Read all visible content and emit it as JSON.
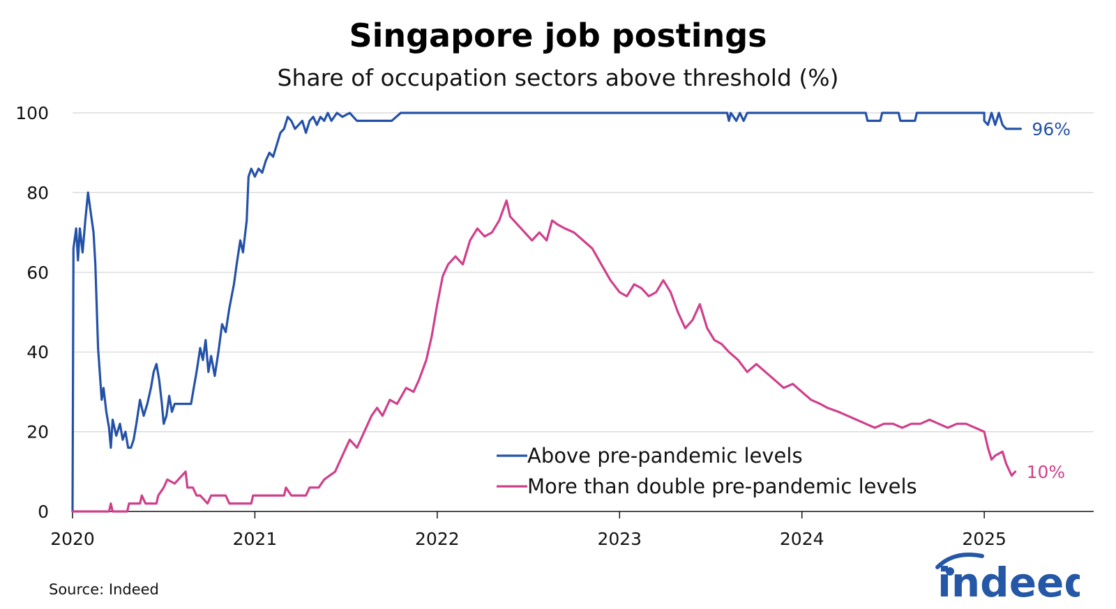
{
  "title": "Singapore job postings",
  "subtitle": "Share of occupation sectors above threshold (%)",
  "source": "Source: Indeed",
  "logo_text": "indeed",
  "colors": {
    "blue": "#2451a8",
    "pink": "#cf3f8b",
    "grid": "#d4d4d4",
    "axis": "#111111",
    "logo": "#2557a7"
  },
  "chart_data": {
    "type": "line",
    "title": "Singapore job postings",
    "subtitle": "Share of occupation sectors above threshold (%)",
    "xlabel": "",
    "ylabel": "",
    "xlim": [
      2020.0,
      2025.6
    ],
    "ylim": [
      0,
      100
    ],
    "x_ticks": [
      2020,
      2021,
      2022,
      2023,
      2024,
      2025
    ],
    "x_tick_labels": [
      "2020",
      "2021",
      "2022",
      "2023",
      "2024",
      "2025"
    ],
    "y_ticks": [
      0,
      20,
      40,
      60,
      80,
      100
    ],
    "y_tick_labels": [
      "0",
      "20",
      "40",
      "60",
      "80",
      "100"
    ],
    "grid": "horizontal",
    "legend_position": "bottom-right",
    "series": [
      {
        "name": "Above pre-pandemic levels",
        "color": "#2451a8",
        "end_label": "96%",
        "points": [
          [
            2020.0,
            0
          ],
          [
            2020.005,
            66
          ],
          [
            2020.02,
            71
          ],
          [
            2020.03,
            63
          ],
          [
            2020.04,
            71
          ],
          [
            2020.055,
            65
          ],
          [
            2020.07,
            73
          ],
          [
            2020.085,
            80
          ],
          [
            2020.1,
            75
          ],
          [
            2020.115,
            70
          ],
          [
            2020.125,
            62
          ],
          [
            2020.14,
            41
          ],
          [
            2020.16,
            28
          ],
          [
            2020.17,
            31
          ],
          [
            2020.185,
            25
          ],
          [
            2020.2,
            21
          ],
          [
            2020.21,
            16
          ],
          [
            2020.22,
            23
          ],
          [
            2020.24,
            19
          ],
          [
            2020.26,
            22
          ],
          [
            2020.275,
            18
          ],
          [
            2020.29,
            20
          ],
          [
            2020.305,
            16
          ],
          [
            2020.32,
            16
          ],
          [
            2020.335,
            18
          ],
          [
            2020.35,
            22
          ],
          [
            2020.37,
            28
          ],
          [
            2020.39,
            24
          ],
          [
            2020.41,
            27
          ],
          [
            2020.43,
            31
          ],
          [
            2020.445,
            35
          ],
          [
            2020.46,
            37
          ],
          [
            2020.475,
            33
          ],
          [
            2020.49,
            27
          ],
          [
            2020.5,
            22
          ],
          [
            2020.515,
            24
          ],
          [
            2020.53,
            29
          ],
          [
            2020.545,
            25
          ],
          [
            2020.56,
            27
          ],
          [
            2020.6,
            27
          ],
          [
            2020.65,
            27
          ],
          [
            2020.665,
            31
          ],
          [
            2020.68,
            35
          ],
          [
            2020.7,
            41
          ],
          [
            2020.715,
            38
          ],
          [
            2020.73,
            43
          ],
          [
            2020.745,
            35
          ],
          [
            2020.76,
            39
          ],
          [
            2020.78,
            34
          ],
          [
            2020.8,
            40
          ],
          [
            2020.82,
            47
          ],
          [
            2020.84,
            45
          ],
          [
            2020.86,
            51
          ],
          [
            2020.885,
            57
          ],
          [
            2020.9,
            62
          ],
          [
            2020.92,
            68
          ],
          [
            2020.935,
            65
          ],
          [
            2020.955,
            73
          ],
          [
            2020.965,
            84
          ],
          [
            2020.98,
            86
          ],
          [
            2021.0,
            84
          ],
          [
            2021.02,
            86
          ],
          [
            2021.04,
            85
          ],
          [
            2021.06,
            88
          ],
          [
            2021.08,
            90
          ],
          [
            2021.1,
            89
          ],
          [
            2021.12,
            92
          ],
          [
            2021.14,
            95
          ],
          [
            2021.16,
            96
          ],
          [
            2021.18,
            99
          ],
          [
            2021.2,
            98
          ],
          [
            2021.22,
            96
          ],
          [
            2021.24,
            97
          ],
          [
            2021.26,
            98
          ],
          [
            2021.28,
            95
          ],
          [
            2021.3,
            98
          ],
          [
            2021.32,
            99
          ],
          [
            2021.34,
            97
          ],
          [
            2021.36,
            99
          ],
          [
            2021.38,
            98
          ],
          [
            2021.4,
            100
          ],
          [
            2021.42,
            98
          ],
          [
            2021.45,
            100
          ],
          [
            2021.48,
            99
          ],
          [
            2021.52,
            100
          ],
          [
            2021.56,
            98
          ],
          [
            2021.6,
            98
          ],
          [
            2021.65,
            98
          ],
          [
            2021.7,
            98
          ],
          [
            2021.75,
            98
          ],
          [
            2021.8,
            100
          ],
          [
            2022.0,
            100
          ],
          [
            2022.5,
            100
          ],
          [
            2023.0,
            100
          ],
          [
            2023.5,
            100
          ],
          [
            2023.59,
            100
          ],
          [
            2023.6,
            98
          ],
          [
            2023.61,
            100
          ],
          [
            2023.64,
            98
          ],
          [
            2023.66,
            100
          ],
          [
            2023.68,
            98
          ],
          [
            2023.7,
            100
          ],
          [
            2023.9,
            100
          ],
          [
            2024.35,
            100
          ],
          [
            2024.36,
            98
          ],
          [
            2024.43,
            98
          ],
          [
            2024.44,
            100
          ],
          [
            2024.53,
            100
          ],
          [
            2024.54,
            98
          ],
          [
            2024.62,
            98
          ],
          [
            2024.63,
            100
          ],
          [
            2025.0,
            100
          ],
          [
            2025.0,
            98
          ],
          [
            2025.02,
            97
          ],
          [
            2025.04,
            100
          ],
          [
            2025.06,
            97
          ],
          [
            2025.08,
            100
          ],
          [
            2025.1,
            97
          ],
          [
            2025.12,
            96
          ],
          [
            2025.2,
            96
          ]
        ]
      },
      {
        "name": "More than double pre-pandemic levels",
        "color": "#cf3f8b",
        "end_label": "10%",
        "points": [
          [
            2020.0,
            0
          ],
          [
            2020.2,
            0
          ],
          [
            2020.21,
            2
          ],
          [
            2020.22,
            0
          ],
          [
            2020.3,
            0
          ],
          [
            2020.31,
            2
          ],
          [
            2020.37,
            2
          ],
          [
            2020.38,
            4
          ],
          [
            2020.4,
            2
          ],
          [
            2020.46,
            2
          ],
          [
            2020.47,
            4
          ],
          [
            2020.5,
            6
          ],
          [
            2020.52,
            8
          ],
          [
            2020.56,
            7
          ],
          [
            2020.6,
            9
          ],
          [
            2020.62,
            10
          ],
          [
            2020.63,
            6
          ],
          [
            2020.66,
            6
          ],
          [
            2020.68,
            4
          ],
          [
            2020.7,
            4
          ],
          [
            2020.74,
            2
          ],
          [
            2020.76,
            4
          ],
          [
            2020.84,
            4
          ],
          [
            2020.86,
            2
          ],
          [
            2020.98,
            2
          ],
          [
            2020.99,
            4
          ],
          [
            2021.16,
            4
          ],
          [
            2021.17,
            6
          ],
          [
            2021.2,
            4
          ],
          [
            2021.28,
            4
          ],
          [
            2021.3,
            6
          ],
          [
            2021.35,
            6
          ],
          [
            2021.38,
            8
          ],
          [
            2021.44,
            10
          ],
          [
            2021.48,
            14
          ],
          [
            2021.52,
            18
          ],
          [
            2021.56,
            16
          ],
          [
            2021.6,
            20
          ],
          [
            2021.64,
            24
          ],
          [
            2021.67,
            26
          ],
          [
            2021.7,
            24
          ],
          [
            2021.74,
            28
          ],
          [
            2021.78,
            27
          ],
          [
            2021.83,
            31
          ],
          [
            2021.87,
            30
          ],
          [
            2021.9,
            33
          ],
          [
            2021.94,
            38
          ],
          [
            2021.97,
            44
          ],
          [
            2022.0,
            52
          ],
          [
            2022.03,
            59
          ],
          [
            2022.06,
            62
          ],
          [
            2022.1,
            64
          ],
          [
            2022.14,
            62
          ],
          [
            2022.18,
            68
          ],
          [
            2022.22,
            71
          ],
          [
            2022.26,
            69
          ],
          [
            2022.3,
            70
          ],
          [
            2022.34,
            73
          ],
          [
            2022.38,
            78
          ],
          [
            2022.4,
            74
          ],
          [
            2022.44,
            72
          ],
          [
            2022.48,
            70
          ],
          [
            2022.52,
            68
          ],
          [
            2022.56,
            70
          ],
          [
            2022.6,
            68
          ],
          [
            2022.63,
            73
          ],
          [
            2022.66,
            72
          ],
          [
            2022.7,
            71
          ],
          [
            2022.75,
            70
          ],
          [
            2022.8,
            68
          ],
          [
            2022.85,
            66
          ],
          [
            2022.9,
            62
          ],
          [
            2022.95,
            58
          ],
          [
            2023.0,
            55
          ],
          [
            2023.04,
            54
          ],
          [
            2023.08,
            57
          ],
          [
            2023.12,
            56
          ],
          [
            2023.16,
            54
          ],
          [
            2023.2,
            55
          ],
          [
            2023.24,
            58
          ],
          [
            2023.28,
            55
          ],
          [
            2023.32,
            50
          ],
          [
            2023.36,
            46
          ],
          [
            2023.4,
            48
          ],
          [
            2023.44,
            52
          ],
          [
            2023.48,
            46
          ],
          [
            2023.52,
            43
          ],
          [
            2023.56,
            42
          ],
          [
            2023.6,
            40
          ],
          [
            2023.65,
            38
          ],
          [
            2023.7,
            35
          ],
          [
            2023.75,
            37
          ],
          [
            2023.8,
            35
          ],
          [
            2023.85,
            33
          ],
          [
            2023.9,
            31
          ],
          [
            2023.95,
            32
          ],
          [
            2024.0,
            30
          ],
          [
            2024.05,
            28
          ],
          [
            2024.1,
            27
          ],
          [
            2024.14,
            26
          ],
          [
            2024.2,
            25
          ],
          [
            2024.25,
            24
          ],
          [
            2024.3,
            23
          ],
          [
            2024.35,
            22
          ],
          [
            2024.4,
            21
          ],
          [
            2024.45,
            22
          ],
          [
            2024.5,
            22
          ],
          [
            2024.55,
            21
          ],
          [
            2024.6,
            22
          ],
          [
            2024.65,
            22
          ],
          [
            2024.7,
            23
          ],
          [
            2024.75,
            22
          ],
          [
            2024.8,
            21
          ],
          [
            2024.85,
            22
          ],
          [
            2024.9,
            22
          ],
          [
            2024.95,
            21
          ],
          [
            2025.0,
            20
          ],
          [
            2025.02,
            16
          ],
          [
            2025.04,
            13
          ],
          [
            2025.06,
            14
          ],
          [
            2025.1,
            15
          ],
          [
            2025.12,
            12
          ],
          [
            2025.15,
            9
          ],
          [
            2025.17,
            10
          ]
        ]
      }
    ]
  }
}
